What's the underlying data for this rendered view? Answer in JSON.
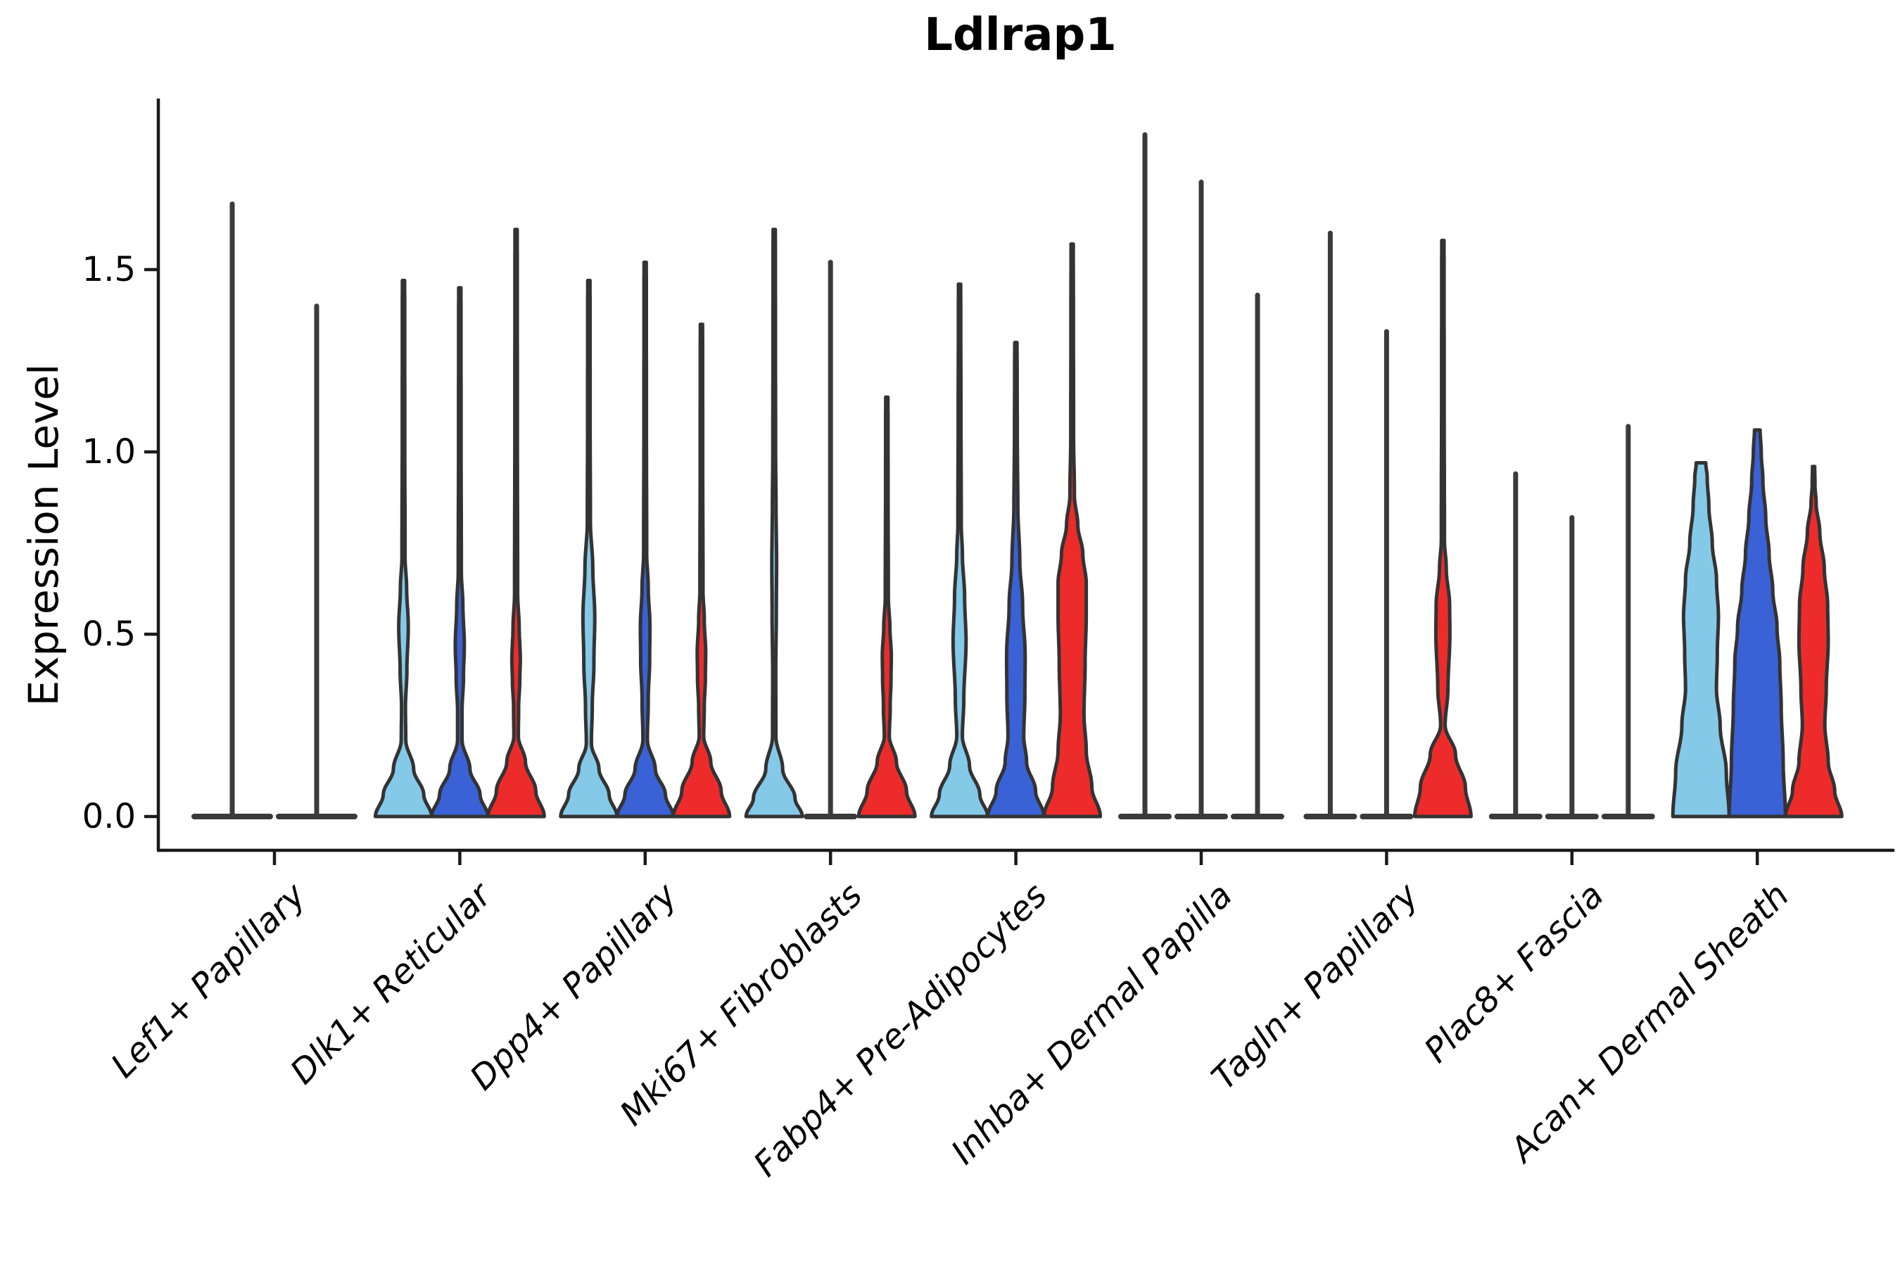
{
  "title": "Ldlrap1",
  "ylabel": "Expression Level",
  "chart_data": {
    "type": "violin",
    "title": "Ldlrap1",
    "xlabel": "",
    "ylabel": "Expression Level",
    "ylim": [
      -0.09,
      1.97
    ],
    "grid": false,
    "legend": "none",
    "yticks": [
      {
        "value": 0.0,
        "label": "0.0"
      },
      {
        "value": 0.5,
        "label": "0.5"
      },
      {
        "value": 1.0,
        "label": "1.0"
      },
      {
        "value": 1.5,
        "label": "1.5"
      }
    ],
    "categories": [
      "Lef1+ Papillary",
      "Dlk1+ Reticular",
      "Dpp4+ Papillary",
      "Mki67+ Fibroblasts",
      "Fabp4+ Pre-Adipocytes",
      "Inhba+ Dermal Papilla",
      "Tagln+ Papillary",
      "Plac8+ Fascia",
      "Acan+ Dermal Sheath"
    ],
    "palette": {
      "light_blue": "#85C9E8",
      "dark_blue": "#3A62D6",
      "red": "#EE2B2B",
      "outline": "#333333",
      "spike": "#3A3A3A",
      "axis": "#1A1A1A"
    },
    "groups": [
      {
        "category": "Lef1+ Papillary",
        "violins": [
          {
            "color": "light_blue",
            "shape": "spike",
            "max": 1.68
          },
          {
            "color": "dark_blue",
            "shape": "spike",
            "max": 1.4
          }
        ]
      },
      {
        "category": "Dlk1+ Reticular",
        "violins": [
          {
            "color": "light_blue",
            "shape": "body",
            "max": 1.47,
            "profile": [
              [
                0,
                1.0
              ],
              [
                0.06,
                0.72
              ],
              [
                0.13,
                0.36
              ],
              [
                0.21,
                0.08
              ],
              [
                0.3,
                0.07
              ],
              [
                0.4,
                0.12
              ],
              [
                0.52,
                0.17
              ],
              [
                0.63,
                0.11
              ],
              [
                0.71,
                0.055
              ],
              [
                1.05,
                0.045
              ],
              [
                1.4,
                0.042
              ],
              [
                1.47,
                0.04
              ]
            ]
          },
          {
            "color": "dark_blue",
            "shape": "body",
            "max": 1.45,
            "profile": [
              [
                0,
                1.0
              ],
              [
                0.06,
                0.72
              ],
              [
                0.13,
                0.36
              ],
              [
                0.21,
                0.08
              ],
              [
                0.29,
                0.08
              ],
              [
                0.38,
                0.13
              ],
              [
                0.47,
                0.16
              ],
              [
                0.58,
                0.11
              ],
              [
                0.67,
                0.055
              ],
              [
                1.05,
                0.045
              ],
              [
                1.38,
                0.042
              ],
              [
                1.45,
                0.04
              ]
            ]
          },
          {
            "color": "red",
            "shape": "body",
            "max": 1.61,
            "profile": [
              [
                0,
                1.0
              ],
              [
                0.07,
                0.7
              ],
              [
                0.15,
                0.33
              ],
              [
                0.22,
                0.08
              ],
              [
                0.3,
                0.09
              ],
              [
                0.37,
                0.13
              ],
              [
                0.43,
                0.15
              ],
              [
                0.52,
                0.11
              ],
              [
                0.61,
                0.055
              ],
              [
                1.1,
                0.045
              ],
              [
                1.5,
                0.042
              ],
              [
                1.61,
                0.04
              ]
            ]
          }
        ]
      },
      {
        "category": "Dpp4+ Papillary",
        "violins": [
          {
            "color": "light_blue",
            "shape": "body",
            "max": 1.47,
            "profile": [
              [
                0,
                1.0
              ],
              [
                0.06,
                0.72
              ],
              [
                0.13,
                0.36
              ],
              [
                0.2,
                0.09
              ],
              [
                0.3,
                0.12
              ],
              [
                0.42,
                0.18
              ],
              [
                0.55,
                0.21
              ],
              [
                0.68,
                0.14
              ],
              [
                0.81,
                0.055
              ],
              [
                1.1,
                0.045
              ],
              [
                1.4,
                0.042
              ],
              [
                1.47,
                0.04
              ]
            ]
          },
          {
            "color": "dark_blue",
            "shape": "body",
            "max": 1.52,
            "profile": [
              [
                0,
                1.0
              ],
              [
                0.06,
                0.72
              ],
              [
                0.13,
                0.36
              ],
              [
                0.21,
                0.08
              ],
              [
                0.32,
                0.11
              ],
              [
                0.43,
                0.16
              ],
              [
                0.52,
                0.17
              ],
              [
                0.63,
                0.11
              ],
              [
                0.72,
                0.055
              ],
              [
                1.1,
                0.045
              ],
              [
                1.45,
                0.042
              ],
              [
                1.52,
                0.04
              ]
            ]
          },
          {
            "color": "red",
            "shape": "body",
            "max": 1.35,
            "profile": [
              [
                0,
                1.0
              ],
              [
                0.07,
                0.7
              ],
              [
                0.15,
                0.33
              ],
              [
                0.22,
                0.08
              ],
              [
                0.3,
                0.1
              ],
              [
                0.38,
                0.14
              ],
              [
                0.45,
                0.15
              ],
              [
                0.54,
                0.1
              ],
              [
                0.62,
                0.055
              ],
              [
                1.0,
                0.045
              ],
              [
                1.28,
                0.042
              ],
              [
                1.35,
                0.04
              ]
            ]
          }
        ]
      },
      {
        "category": "Mki67+ Fibroblasts",
        "violins": [
          {
            "color": "light_blue",
            "shape": "body",
            "max": 1.61,
            "profile": [
              [
                0,
                1.0
              ],
              [
                0.05,
                0.74
              ],
              [
                0.13,
                0.3
              ],
              [
                0.22,
                0.06
              ],
              [
                0.4,
                0.055
              ],
              [
                0.55,
                0.075
              ],
              [
                0.7,
                0.085
              ],
              [
                0.85,
                0.065
              ],
              [
                1.0,
                0.05
              ],
              [
                1.3,
                0.045
              ],
              [
                1.55,
                0.042
              ],
              [
                1.61,
                0.04
              ]
            ]
          },
          {
            "color": "dark_blue",
            "shape": "spike",
            "max": 1.52
          },
          {
            "color": "red",
            "shape": "body",
            "max": 1.15,
            "profile": [
              [
                0,
                1.0
              ],
              [
                0.07,
                0.7
              ],
              [
                0.15,
                0.34
              ],
              [
                0.22,
                0.09
              ],
              [
                0.3,
                0.12
              ],
              [
                0.38,
                0.15
              ],
              [
                0.44,
                0.16
              ],
              [
                0.52,
                0.11
              ],
              [
                0.6,
                0.055
              ],
              [
                0.9,
                0.045
              ],
              [
                1.08,
                0.042
              ],
              [
                1.15,
                0.04
              ]
            ]
          }
        ]
      },
      {
        "category": "Fabp4+ Pre-Adipocytes",
        "violins": [
          {
            "color": "light_blue",
            "shape": "body",
            "max": 1.46,
            "profile": [
              [
                0,
                1.0
              ],
              [
                0.06,
                0.72
              ],
              [
                0.14,
                0.35
              ],
              [
                0.22,
                0.1
              ],
              [
                0.32,
                0.15
              ],
              [
                0.48,
                0.23
              ],
              [
                0.6,
                0.18
              ],
              [
                0.72,
                0.1
              ],
              [
                0.8,
                0.06
              ],
              [
                1.1,
                0.05
              ],
              [
                1.38,
                0.042
              ],
              [
                1.46,
                0.04
              ]
            ]
          },
          {
            "color": "dark_blue",
            "shape": "body",
            "max": 1.3,
            "profile": [
              [
                0,
                1.0
              ],
              [
                0.07,
                0.7
              ],
              [
                0.15,
                0.38
              ],
              [
                0.22,
                0.28
              ],
              [
                0.33,
                0.32
              ],
              [
                0.44,
                0.33
              ],
              [
                0.58,
                0.24
              ],
              [
                0.7,
                0.14
              ],
              [
                0.85,
                0.07
              ],
              [
                1.05,
                0.05
              ],
              [
                1.22,
                0.045
              ],
              [
                1.3,
                0.04
              ]
            ]
          },
          {
            "color": "red",
            "shape": "body",
            "max": 1.57,
            "profile": [
              [
                0,
                1.0
              ],
              [
                0.08,
                0.7
              ],
              [
                0.18,
                0.5
              ],
              [
                0.28,
                0.42
              ],
              [
                0.42,
                0.46
              ],
              [
                0.55,
                0.5
              ],
              [
                0.64,
                0.5
              ],
              [
                0.72,
                0.38
              ],
              [
                0.8,
                0.2
              ],
              [
                0.88,
                0.08
              ],
              [
                1.05,
                0.05
              ],
              [
                1.35,
                0.045
              ],
              [
                1.57,
                0.04
              ]
            ]
          }
        ]
      },
      {
        "category": "Inhba+ Dermal Papilla",
        "violins": [
          {
            "color": "light_blue",
            "shape": "spike",
            "max": 1.87
          },
          {
            "color": "dark_blue",
            "shape": "spike",
            "max": 1.74
          },
          {
            "color": "red",
            "shape": "spike",
            "max": 1.43
          }
        ]
      },
      {
        "category": "Tagln+ Papillary",
        "violins": [
          {
            "color": "light_blue",
            "shape": "spike",
            "max": 1.6
          },
          {
            "color": "dark_blue",
            "shape": "spike",
            "max": 1.33
          },
          {
            "color": "red",
            "shape": "body",
            "max": 1.58,
            "profile": [
              [
                0,
                1.0
              ],
              [
                0.08,
                0.8
              ],
              [
                0.17,
                0.45
              ],
              [
                0.25,
                0.08
              ],
              [
                0.35,
                0.18
              ],
              [
                0.5,
                0.25
              ],
              [
                0.58,
                0.24
              ],
              [
                0.68,
                0.12
              ],
              [
                0.76,
                0.055
              ],
              [
                1.2,
                0.045
              ],
              [
                1.5,
                0.042
              ],
              [
                1.58,
                0.04
              ]
            ]
          }
        ]
      },
      {
        "category": "Plac8+ Fascia",
        "violins": [
          {
            "color": "light_blue",
            "shape": "spike",
            "max": 0.94
          },
          {
            "color": "dark_blue",
            "shape": "spike",
            "max": 0.82
          },
          {
            "color": "red",
            "shape": "spike",
            "max": 1.07
          }
        ]
      },
      {
        "category": "Acan+ Dermal Sheath",
        "violins": [
          {
            "color": "light_blue",
            "shape": "body",
            "max": 0.97,
            "profile": [
              [
                0,
                1.0
              ],
              [
                0.12,
                0.9
              ],
              [
                0.25,
                0.68
              ],
              [
                0.35,
                0.55
              ],
              [
                0.45,
                0.58
              ],
              [
                0.55,
                0.62
              ],
              [
                0.65,
                0.55
              ],
              [
                0.75,
                0.4
              ],
              [
                0.85,
                0.28
              ],
              [
                0.93,
                0.22
              ],
              [
                0.97,
                0.17
              ]
            ]
          },
          {
            "color": "dark_blue",
            "shape": "body",
            "max": 1.06,
            "profile": [
              [
                0,
                1.0
              ],
              [
                0.15,
                0.92
              ],
              [
                0.3,
                0.85
              ],
              [
                0.42,
                0.8
              ],
              [
                0.52,
                0.7
              ],
              [
                0.62,
                0.55
              ],
              [
                0.72,
                0.42
              ],
              [
                0.82,
                0.3
              ],
              [
                0.92,
                0.2
              ],
              [
                1.0,
                0.14
              ],
              [
                1.06,
                0.1
              ]
            ]
          },
          {
            "color": "red",
            "shape": "body",
            "max": 0.96,
            "profile": [
              [
                0,
                1.0
              ],
              [
                0.07,
                0.75
              ],
              [
                0.15,
                0.52
              ],
              [
                0.25,
                0.4
              ],
              [
                0.35,
                0.45
              ],
              [
                0.48,
                0.52
              ],
              [
                0.58,
                0.5
              ],
              [
                0.68,
                0.38
              ],
              [
                0.78,
                0.22
              ],
              [
                0.86,
                0.09
              ],
              [
                0.91,
                0.05
              ],
              [
                0.96,
                0.04
              ]
            ]
          }
        ]
      }
    ]
  }
}
